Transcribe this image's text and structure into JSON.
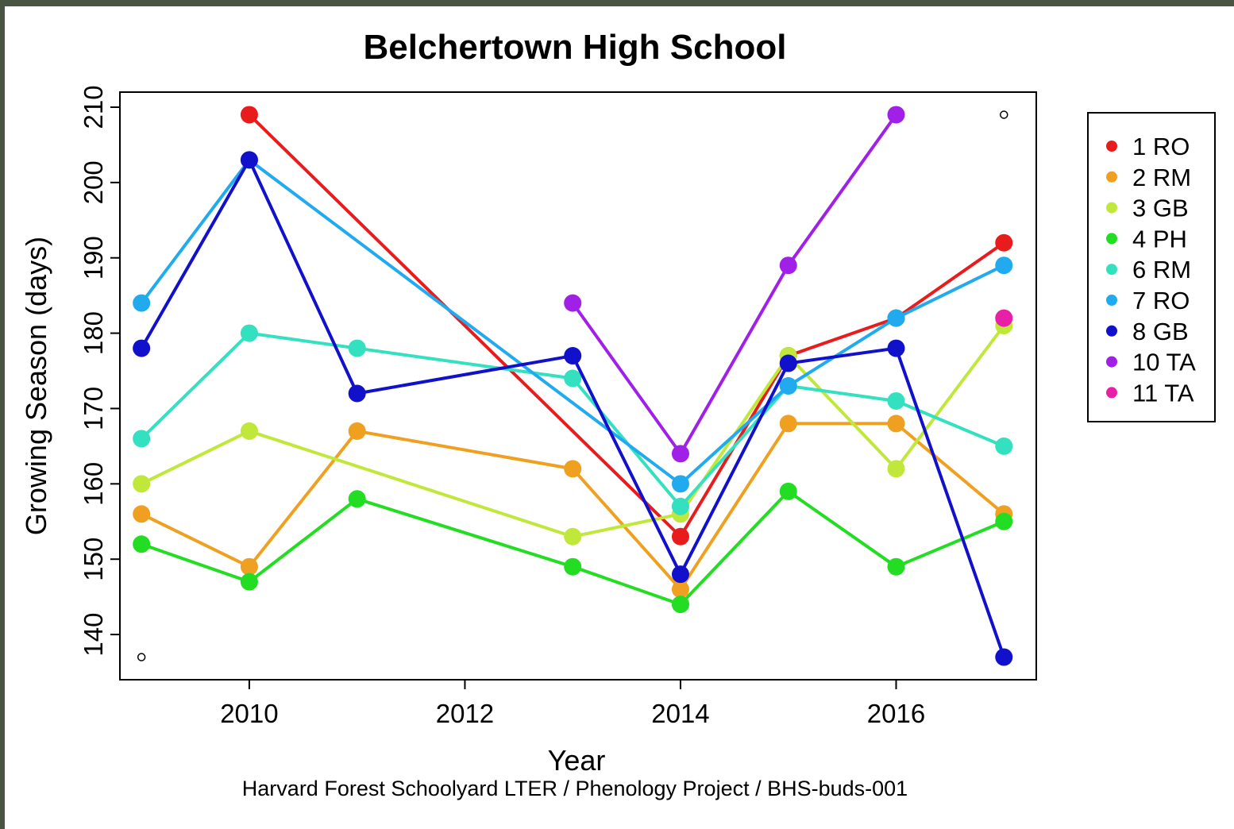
{
  "chart_data": {
    "type": "line",
    "title": "Belchertown High School",
    "xlabel": "Year",
    "ylabel": "Growing Season (days)",
    "caption": "Harvard Forest Schoolyard LTER / Phenology Project / BHS-buds-001",
    "xlim": [
      2008.8,
      2017.3
    ],
    "ylim": [
      134,
      212
    ],
    "x_ticks": [
      2010,
      2012,
      2014,
      2016
    ],
    "y_ticks": [
      140,
      150,
      160,
      170,
      180,
      190,
      200,
      210
    ],
    "grid": false,
    "legend_position": "right",
    "series": [
      {
        "name": "1 RO",
        "color": "#e81c1c",
        "x": [
          2010,
          2014,
          2015,
          2016,
          2017
        ],
        "y": [
          209,
          153,
          177,
          182,
          192
        ]
      },
      {
        "name": "2 RM",
        "color": "#f0a020",
        "x": [
          2009,
          2010,
          2011,
          2013,
          2014,
          2015,
          2016,
          2017
        ],
        "y": [
          156,
          149,
          167,
          162,
          146,
          168,
          168,
          156
        ]
      },
      {
        "name": "3 GB",
        "color": "#bfe83a",
        "x": [
          2009,
          2010,
          2013,
          2014,
          2015,
          2016,
          2017
        ],
        "y": [
          160,
          167,
          153,
          156,
          177,
          162,
          181
        ]
      },
      {
        "name": "4 PH",
        "color": "#22dd22",
        "x": [
          2009,
          2010,
          2011,
          2013,
          2014,
          2015,
          2016,
          2017
        ],
        "y": [
          152,
          147,
          158,
          149,
          144,
          159,
          149,
          155
        ]
      },
      {
        "name": "6 RM",
        "color": "#33e0c0",
        "x": [
          2009,
          2010,
          2011,
          2013,
          2014,
          2015,
          2016,
          2017
        ],
        "y": [
          166,
          180,
          178,
          174,
          157,
          173,
          171,
          165
        ]
      },
      {
        "name": "7 RO",
        "color": "#22aaee",
        "x": [
          2009,
          2010,
          2014,
          2015,
          2016,
          2017
        ],
        "y": [
          184,
          203,
          160,
          173,
          182,
          189
        ]
      },
      {
        "name": "8 GB",
        "color": "#1111cc",
        "x": [
          2009,
          2010,
          2011,
          2013,
          2014,
          2015,
          2016,
          2017
        ],
        "y": [
          178,
          203,
          172,
          177,
          148,
          176,
          178,
          137
        ]
      },
      {
        "name": "10 TA",
        "color": "#a020e8",
        "x": [
          2013,
          2014,
          2015,
          2016
        ],
        "y": [
          184,
          164,
          189,
          209
        ]
      },
      {
        "name": "11 TA",
        "color": "#e820a8",
        "x": [
          2017
        ],
        "y": [
          182
        ]
      }
    ],
    "open_points": [
      {
        "x": 2009,
        "y": 137
      },
      {
        "x": 2017,
        "y": 209
      }
    ]
  }
}
